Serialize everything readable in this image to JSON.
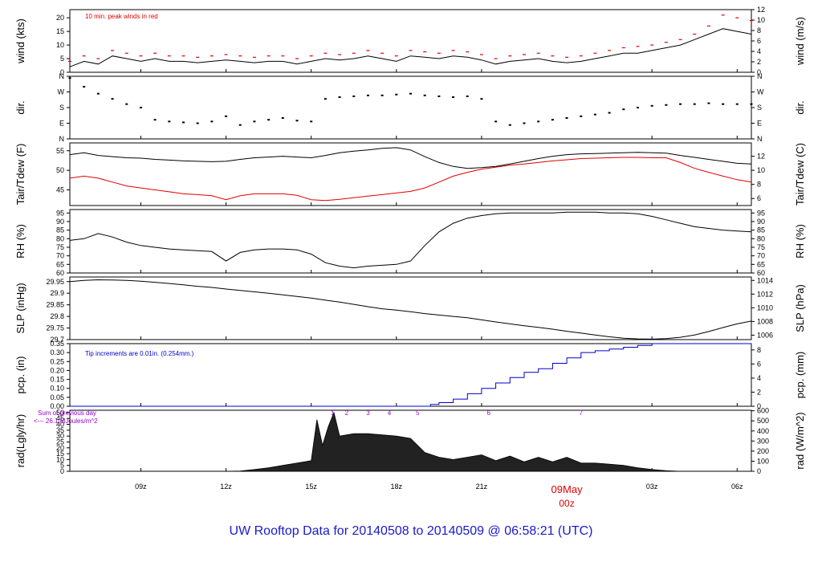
{
  "title": "UW Rooftop Data for 20140508  to  20140509 @ 06:58:21  (UTC)",
  "colors": {
    "black": "#000000",
    "red": "#e00000",
    "blue": "#0000cc",
    "purple": "#9900cc",
    "title": "#1a1acc"
  },
  "chart_data": [
    {
      "id": "wind",
      "type": "line",
      "ylabel_left": "wind (kts)",
      "ylabel_right": "wind (m/s)",
      "ylim": [
        0,
        23
      ],
      "yticks_left": [
        0,
        5,
        10,
        15,
        20
      ],
      "right_ylim": [
        0,
        12
      ],
      "yticks_right": [
        0,
        2,
        4,
        6,
        8,
        10,
        12
      ],
      "annotation": "10 min. peak winds in red",
      "x_hours": [
        6.5,
        7,
        7.5,
        8,
        8.5,
        9,
        9.5,
        10,
        10.5,
        11,
        11.5,
        12,
        12.5,
        13,
        13.5,
        14,
        14.5,
        15,
        15.5,
        16,
        16.5,
        17,
        17.5,
        18,
        18.5,
        19,
        19.5,
        20,
        20.5,
        21,
        21.5,
        22,
        22.5,
        23,
        23.5,
        24,
        24.5,
        25,
        25.5,
        26,
        26.5,
        27,
        27.5,
        28,
        28.5,
        29,
        29.5,
        30,
        30.5
      ],
      "series": [
        {
          "name": "wind",
          "values": [
            2,
            4,
            3,
            6,
            5,
            4,
            5,
            4,
            4,
            3.5,
            4,
            4.5,
            4,
            3.5,
            4,
            4,
            3,
            4,
            5,
            4.5,
            5,
            6,
            5,
            4,
            6,
            5.5,
            5,
            6,
            5.5,
            4.5,
            3,
            4,
            4.5,
            5,
            4,
            3.5,
            4,
            5,
            6,
            7,
            7,
            8,
            9,
            10,
            12,
            14,
            16,
            15,
            14
          ]
        },
        {
          "name": "peak",
          "values": [
            4,
            6,
            5,
            8,
            7,
            6,
            7,
            6,
            6,
            5.5,
            6,
            6.5,
            6,
            5.5,
            6,
            6,
            5,
            6,
            7,
            6.5,
            7,
            8,
            7,
            6,
            8,
            7.5,
            7,
            8,
            7.5,
            6.5,
            5,
            6,
            6.5,
            7,
            6,
            5.5,
            6,
            7,
            8,
            9,
            9.5,
            10,
            11,
            12,
            14,
            17,
            21,
            20,
            19
          ]
        }
      ]
    },
    {
      "id": "dir",
      "type": "scatter",
      "ylabel_left": "dir.",
      "ylabel_right": "dir.",
      "ylim": [
        0,
        360
      ],
      "ytick_values": [
        0,
        90,
        180,
        270,
        360
      ],
      "ytick_labels": [
        "N",
        "E",
        "S",
        "W",
        "N"
      ],
      "x_hours": [
        6.5,
        7,
        7.5,
        8,
        8.5,
        9,
        9.5,
        10,
        10.5,
        11,
        11.5,
        12,
        12.5,
        13,
        13.5,
        14,
        14.5,
        15,
        15.5,
        16,
        16.5,
        17,
        17.5,
        18,
        18.5,
        19,
        19.5,
        20,
        20.5,
        21,
        21.5,
        22,
        22.5,
        23,
        23.5,
        24,
        24.5,
        25,
        25.5,
        26,
        26.5,
        27,
        27.5,
        28,
        28.5,
        29,
        29.5,
        30,
        30.5
      ],
      "series": [
        {
          "name": "dir",
          "values": [
            350,
            300,
            260,
            230,
            200,
            180,
            110,
            100,
            95,
            90,
            100,
            130,
            80,
            100,
            110,
            120,
            105,
            100,
            230,
            240,
            245,
            250,
            250,
            255,
            260,
            250,
            245,
            240,
            245,
            230,
            100,
            80,
            90,
            100,
            110,
            120,
            130,
            140,
            150,
            170,
            180,
            190,
            195,
            200,
            200,
            205,
            200,
            200,
            200
          ]
        }
      ]
    },
    {
      "id": "temp",
      "type": "line",
      "ylabel_left": "Tair/Tdew (F)",
      "ylabel_right": "Tair/Tdew (C)",
      "ylim": [
        41,
        57
      ],
      "yticks_left": [
        45,
        50,
        55
      ],
      "right_ylim": [
        5,
        13.89
      ],
      "yticks_right": [
        6,
        8,
        10,
        12
      ],
      "x_hours": [
        6.5,
        7,
        7.5,
        8,
        8.5,
        9,
        9.5,
        10,
        10.5,
        11,
        11.5,
        12,
        12.5,
        13,
        13.5,
        14,
        14.5,
        15,
        15.5,
        16,
        16.5,
        17,
        17.5,
        18,
        18.5,
        19,
        19.5,
        20,
        20.5,
        21,
        21.5,
        22,
        22.5,
        23,
        23.5,
        24,
        24.5,
        25,
        25.5,
        26,
        26.5,
        27,
        27.5,
        28,
        28.5,
        29,
        29.5,
        30,
        30.5
      ],
      "series": [
        {
          "name": "Tair",
          "values": [
            54,
            54.5,
            53.8,
            53.5,
            53.2,
            53.1,
            52.8,
            52.6,
            52.4,
            52.3,
            52.2,
            52.3,
            52.8,
            53.2,
            53.4,
            53.6,
            53.4,
            53.2,
            53.8,
            54.5,
            54.9,
            55.2,
            55.6,
            55.8,
            55.2,
            53.5,
            52,
            51,
            50.5,
            50.7,
            51,
            51.6,
            52.3,
            53,
            53.6,
            54,
            54.2,
            54.3,
            54.4,
            54.5,
            54.6,
            54.5,
            54.4,
            53.8,
            53.3,
            52.8,
            52.3,
            51.8,
            51.6
          ]
        },
        {
          "name": "Tdew",
          "values": [
            48,
            48.5,
            48,
            47,
            46,
            45.5,
            45,
            44.5,
            44,
            43.8,
            43.5,
            42.5,
            43.5,
            44,
            44,
            44,
            43.6,
            42.5,
            42.3,
            42.6,
            43,
            43.4,
            43.8,
            44.2,
            44.6,
            45.5,
            47,
            48.5,
            49.5,
            50.3,
            50.8,
            51.3,
            51.6,
            52,
            52.4,
            52.7,
            53,
            53.1,
            53.2,
            53.3,
            53.3,
            53.2,
            53.2,
            52,
            50.5,
            49.5,
            48.5,
            47.6,
            47
          ]
        }
      ]
    },
    {
      "id": "rh",
      "type": "line",
      "ylabel_left": "RH (%)",
      "ylabel_right": "RH (%)",
      "ylim": [
        60,
        97
      ],
      "yticks_left": [
        60,
        65,
        70,
        75,
        80,
        85,
        90,
        95
      ],
      "right_ylim": [
        60,
        97
      ],
      "yticks_right": [
        60,
        65,
        70,
        75,
        80,
        85,
        90,
        95
      ],
      "x_hours": [
        6.5,
        7,
        7.5,
        8,
        8.5,
        9,
        9.5,
        10,
        10.5,
        11,
        11.5,
        12,
        12.5,
        13,
        13.5,
        14,
        14.5,
        15,
        15.5,
        16,
        16.5,
        17,
        17.5,
        18,
        18.5,
        19,
        19.5,
        20,
        20.5,
        21,
        21.5,
        22,
        22.5,
        23,
        23.5,
        24,
        24.5,
        25,
        25.5,
        26,
        26.5,
        27,
        27.5,
        28,
        28.5,
        29,
        29.5,
        30,
        30.5
      ],
      "series": [
        {
          "name": "RH",
          "values": [
            79,
            80,
            83,
            81,
            78,
            76,
            75,
            74,
            73.5,
            73,
            72.5,
            67,
            72,
            73.5,
            74,
            74,
            73.5,
            71,
            66,
            64,
            63,
            64,
            64.5,
            65,
            67,
            76,
            84,
            89,
            92,
            93.5,
            94.5,
            95,
            95,
            95,
            95,
            95.5,
            95.5,
            95.5,
            95,
            95,
            94.5,
            93,
            91,
            89,
            87,
            86,
            85,
            84.5,
            84
          ]
        }
      ]
    },
    {
      "id": "slp",
      "type": "line",
      "ylabel_left": "SLP (inHg)",
      "ylabel_right": "SLP (hPa)",
      "ylim": [
        29.7,
        29.97
      ],
      "yticks_left": [
        29.7,
        29.75,
        29.8,
        29.85,
        29.9,
        29.95
      ],
      "right_ylim": [
        1005.35,
        1014.5
      ],
      "yticks_right": [
        1006,
        1008,
        1010,
        1012,
        1014
      ],
      "x_hours": [
        6.5,
        7,
        7.5,
        8,
        8.5,
        9,
        9.5,
        10,
        10.5,
        11,
        11.5,
        12,
        12.5,
        13,
        13.5,
        14,
        14.5,
        15,
        15.5,
        16,
        16.5,
        17,
        17.5,
        18,
        18.5,
        19,
        19.5,
        20,
        20.5,
        21,
        21.5,
        22,
        22.5,
        23,
        23.5,
        24,
        24.5,
        25,
        25.5,
        26,
        26.5,
        27,
        27.5,
        28,
        28.5,
        29,
        29.5,
        30,
        30.5
      ],
      "series": [
        {
          "name": "SLP",
          "values": [
            29.95,
            29.955,
            29.958,
            29.957,
            29.955,
            29.952,
            29.947,
            29.942,
            29.936,
            29.93,
            29.925,
            29.918,
            29.912,
            29.906,
            29.9,
            29.893,
            29.886,
            29.879,
            29.87,
            29.862,
            29.852,
            29.842,
            29.833,
            29.827,
            29.82,
            29.812,
            29.806,
            29.8,
            29.794,
            29.785,
            29.776,
            29.768,
            29.76,
            29.753,
            29.745,
            29.736,
            29.728,
            29.72,
            29.712,
            29.706,
            29.703,
            29.702,
            29.704,
            29.71,
            29.72,
            29.735,
            29.752,
            29.768,
            29.78
          ]
        }
      ]
    },
    {
      "id": "pcp",
      "type": "step",
      "ylabel_left": "pcp. (in)",
      "ylabel_right": "pcp. (mm)",
      "ylim": [
        0,
        0.35
      ],
      "yticks_left": [
        0,
        0.05,
        0.1,
        0.15,
        0.2,
        0.25,
        0.3,
        0.35
      ],
      "ytick_labels_left": [
        "0.00",
        "0.05",
        "0.10",
        "0.15",
        "0.20",
        "0.25",
        "0.30",
        "0.35"
      ],
      "right_ylim": [
        0,
        8.89
      ],
      "yticks_right": [
        0,
        2,
        4,
        6,
        8
      ],
      "annotation": "Tip increments are 0.01in. (0.254mm.)",
      "x_hours": [
        6.5,
        19,
        19.2,
        19.5,
        20,
        20.5,
        21,
        21.5,
        22,
        22.5,
        23,
        23.5,
        24,
        24.5,
        25,
        25.5,
        26,
        26.5,
        27,
        27.5,
        28,
        28.5,
        29,
        29.5,
        30,
        30.5
      ],
      "series": [
        {
          "name": "pcp",
          "values": [
            0,
            0,
            0.01,
            0.02,
            0.04,
            0.07,
            0.1,
            0.13,
            0.16,
            0.19,
            0.21,
            0.24,
            0.27,
            0.3,
            0.31,
            0.32,
            0.33,
            0.34,
            0.35,
            0.35,
            0.35,
            0.35,
            0.35,
            0.35,
            0.35,
            0.35
          ]
        }
      ]
    },
    {
      "id": "rad",
      "type": "area",
      "ylabel_left": "rad(Lgly/hr)",
      "ylabel_right": "rad (W/m^2)",
      "ylim": [
        0,
        52
      ],
      "yticks_left": [
        0,
        5,
        10,
        15,
        20,
        25,
        30,
        35,
        40,
        45,
        50
      ],
      "right_ylim": [
        0,
        605
      ],
      "yticks_right": [
        0,
        100,
        200,
        300,
        400,
        500,
        600
      ],
      "annotation_top": "Sum of previous day",
      "annotation_bottom": "<--- 26.1 MJoules/m^2",
      "x_hours": [
        6.5,
        12,
        12.5,
        13,
        13.5,
        14,
        14.5,
        15,
        15.2,
        15.4,
        15.6,
        15.8,
        16,
        16.5,
        17,
        17.5,
        18,
        18.5,
        19,
        19.5,
        20,
        20.5,
        21,
        21.5,
        22,
        22.5,
        23,
        23.5,
        24,
        24.5,
        25,
        25.5,
        26,
        26.5,
        27,
        27.5,
        28,
        30.5
      ],
      "series": [
        {
          "name": "rad",
          "values": [
            0,
            0,
            0.3,
            1.5,
            3,
            5,
            7,
            9,
            44,
            22,
            38,
            50,
            30,
            32,
            32,
            31,
            30,
            28,
            16,
            12,
            10,
            12,
            14,
            9,
            13,
            8,
            12,
            8,
            12,
            7,
            7,
            6,
            5,
            3,
            1.5,
            0.5,
            0,
            0
          ]
        }
      ],
      "markers": [
        {
          "label": "1",
          "x": 15.75
        },
        {
          "label": "2",
          "x": 16.25
        },
        {
          "label": "3",
          "x": 17
        },
        {
          "label": "4",
          "x": 17.75
        },
        {
          "label": "5",
          "x": 18.75
        },
        {
          "label": "6",
          "x": 21.25
        },
        {
          "label": "7",
          "x": 24.5
        }
      ]
    }
  ],
  "x_axis": {
    "range_hours": [
      6.5,
      30.5
    ],
    "ticks": [
      {
        "label": "09z",
        "x": 9
      },
      {
        "label": "12z",
        "x": 12
      },
      {
        "label": "15z",
        "x": 15
      },
      {
        "label": "18z",
        "x": 18
      },
      {
        "label": "21z",
        "x": 21
      },
      {
        "label": "03z",
        "x": 27
      },
      {
        "label": "06z",
        "x": 30
      }
    ],
    "date_label": "09May",
    "date_sublabel": "00z",
    "date_x": 24
  }
}
